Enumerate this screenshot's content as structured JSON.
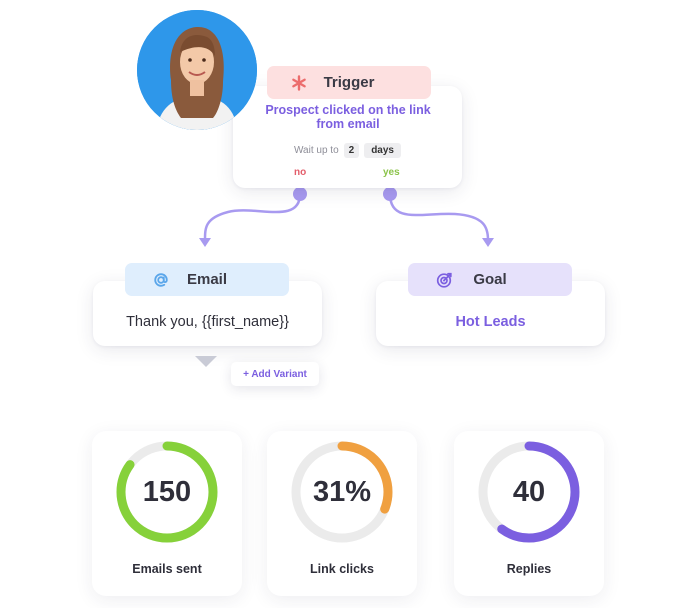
{
  "trigger": {
    "title": "Trigger",
    "condition": "Prospect clicked on the link from email",
    "wait_prefix": "Wait up to",
    "wait_value": "2",
    "wait_unit": "days",
    "no_label": "no",
    "yes_label": "yes"
  },
  "email_step": {
    "title": "Email",
    "body": "Thank you, {{first_name}}",
    "add_variant": "+ Add Variant"
  },
  "goal_step": {
    "title": "Goal",
    "body": "Hot Leads"
  },
  "stats": [
    {
      "value": "150",
      "label": "Emails sent",
      "progress": 0.85,
      "color": "#86d13a"
    },
    {
      "value": "31%",
      "label": "Link clicks",
      "progress": 0.31,
      "color": "#f0a040"
    },
    {
      "value": "40",
      "label": "Replies",
      "progress": 0.6,
      "color": "#7b5fe0"
    }
  ],
  "colors": {
    "accent_purple": "#7b5fe0",
    "connector": "#a89af0",
    "trigger_pill_bg": "#fde0e0",
    "email_pill_bg": "#dfeefd",
    "goal_pill_bg": "#e6e1fb",
    "no_red": "#e35d6a",
    "yes_green": "#8bc34a",
    "ring_track": "#ebebeb"
  },
  "icons": {
    "trigger": "asterisk-icon",
    "email": "at-sign-icon",
    "goal": "target-icon"
  }
}
